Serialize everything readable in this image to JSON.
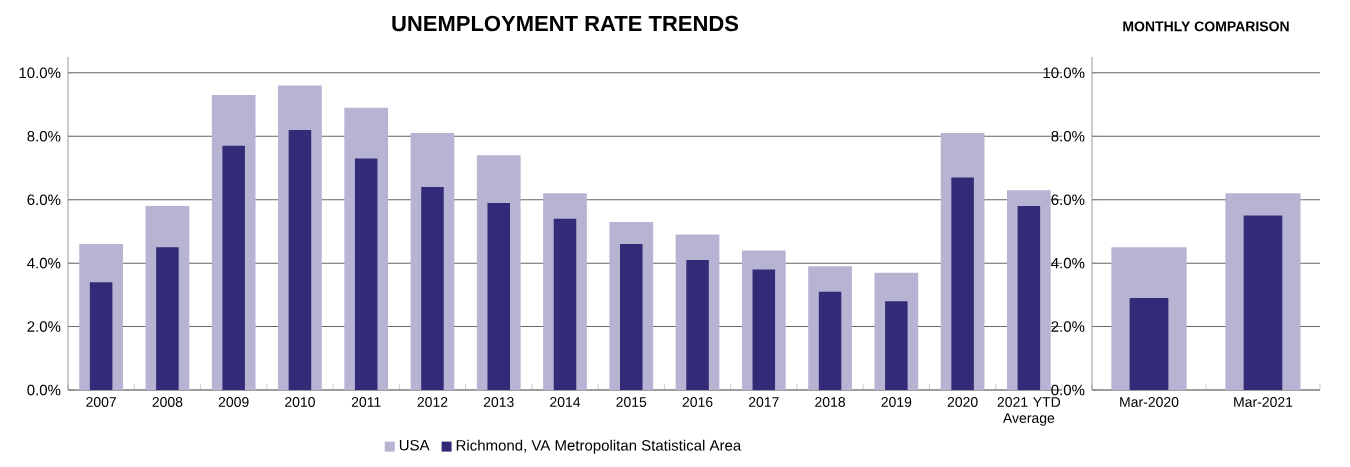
{
  "chart_data": [
    {
      "type": "bar",
      "title": "UNEMPLOYMENT RATE TRENDS",
      "categories": [
        "2007",
        "2008",
        "2009",
        "2010",
        "2011",
        "2012",
        "2013",
        "2014",
        "2015",
        "2016",
        "2017",
        "2018",
        "2019",
        "2020",
        "2021 YTD Average"
      ],
      "series": [
        {
          "name": "USA",
          "color": "#b7b4d3",
          "values": [
            4.6,
            5.8,
            9.3,
            9.6,
            8.9,
            8.1,
            7.4,
            6.2,
            5.3,
            4.9,
            4.4,
            3.9,
            3.7,
            8.1,
            6.3
          ]
        },
        {
          "name": "Richmond, VA Metropolitan Statistical Area",
          "color": "#332a78",
          "values": [
            3.4,
            4.5,
            7.7,
            8.2,
            7.3,
            6.4,
            5.9,
            5.4,
            4.6,
            4.1,
            3.8,
            3.1,
            2.8,
            6.7,
            5.8
          ]
        }
      ],
      "ylim": [
        0,
        10.5
      ],
      "yticks": [
        {
          "value": 0,
          "label": "0.0%"
        },
        {
          "value": 2,
          "label": "2.0%"
        },
        {
          "value": 4,
          "label": "4.0%"
        },
        {
          "value": 6,
          "label": "6.0%"
        },
        {
          "value": 8,
          "label": "8.0%"
        },
        {
          "value": 10,
          "label": "10.0%"
        }
      ],
      "grid": "y",
      "legend": "bottom"
    },
    {
      "type": "bar",
      "title": "MONTHLY COMPARISON",
      "categories": [
        "Mar-2020",
        "Mar-2021"
      ],
      "series": [
        {
          "color": "#b7b4d3",
          "values": [
            4.5,
            6.2
          ]
        },
        {
          "color": "#332a78",
          "values": [
            2.9,
            5.5
          ]
        }
      ],
      "ylim": [
        0,
        10.5
      ],
      "yticks": [
        {
          "value": 0,
          "label": "0.0%"
        },
        {
          "value": 2,
          "label": "2.0%"
        },
        {
          "value": 4,
          "label": "4.0%"
        },
        {
          "value": 6,
          "label": "6.0%"
        },
        {
          "value": 8,
          "label": "8.0%"
        },
        {
          "value": 10,
          "label": "10.0%"
        }
      ],
      "grid": "y"
    }
  ]
}
